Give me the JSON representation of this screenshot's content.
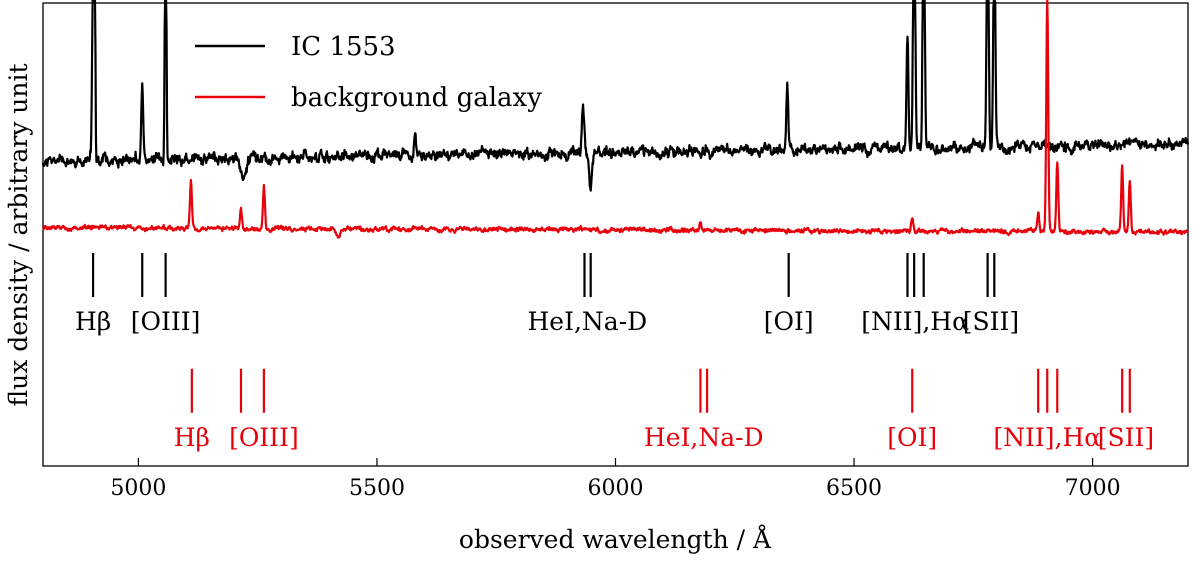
{
  "chart_data": {
    "type": "line",
    "title": "",
    "xlabel": "observed wavelength / Å",
    "ylabel": "flux density / arbitrary unit",
    "xlim": [
      4800,
      7200
    ],
    "ylim": [
      0,
      10
    ],
    "yticks_visible": false,
    "grid": false,
    "legend_position": "top-left",
    "xticks": [
      5000,
      5500,
      6000,
      6500,
      7000
    ],
    "xtick_labels": [
      "5000",
      "5500",
      "6000",
      "6500",
      7000
    ],
    "series": [
      {
        "name": "IC 1553",
        "color": "#000000",
        "baseline_start": 6.6,
        "baseline_end": 6.95,
        "noise": 0.12,
        "features": [
          {
            "x": 4905,
            "amp": 3.8,
            "width": 2.0
          },
          {
            "x": 4908,
            "amp": 7.0,
            "width": 1.3
          },
          {
            "x": 5008,
            "amp": 1.6,
            "width": 2.0
          },
          {
            "x": 5057,
            "amp": 7.0,
            "width": 1.5
          },
          {
            "x": 5220,
            "amp": -0.5,
            "width": 6
          },
          {
            "x": 5580,
            "amp": 0.5,
            "width": 2.0
          },
          {
            "x": 5932,
            "amp": 1.0,
            "width": 2.5
          },
          {
            "x": 5948,
            "amp": -0.9,
            "width": 3.0
          },
          {
            "x": 6360,
            "amp": 1.4,
            "width": 2.0
          },
          {
            "x": 6612,
            "amp": 2.5,
            "width": 2.0
          },
          {
            "x": 6626,
            "amp": 7.0,
            "width": 2.0
          },
          {
            "x": 6646,
            "amp": 6.5,
            "width": 2.0
          },
          {
            "x": 6780,
            "amp": 6.0,
            "width": 2.0
          },
          {
            "x": 6794,
            "amp": 5.0,
            "width": 2.0
          }
        ]
      },
      {
        "name": "background galaxy",
        "color": "#e8000b",
        "baseline_start": 5.15,
        "baseline_end": 5.05,
        "noise": 0.05,
        "features": [
          {
            "x": 5110,
            "amp": 1.0,
            "width": 2.0
          },
          {
            "x": 5215,
            "amp": 0.4,
            "width": 2.0
          },
          {
            "x": 5263,
            "amp": 0.9,
            "width": 2.0
          },
          {
            "x": 5420,
            "amp": -0.2,
            "width": 3.0
          },
          {
            "x": 6178,
            "amp": 0.15,
            "width": 2.0
          },
          {
            "x": 6622,
            "amp": 0.3,
            "width": 2.0
          },
          {
            "x": 6886,
            "amp": 0.4,
            "width": 2.0
          },
          {
            "x": 6905,
            "amp": 5.0,
            "width": 2.0
          },
          {
            "x": 6926,
            "amp": 1.5,
            "width": 2.0
          },
          {
            "x": 7062,
            "amp": 1.5,
            "width": 2.0
          },
          {
            "x": 7078,
            "amp": 1.1,
            "width": 2.0
          }
        ]
      }
    ],
    "line_markers": [
      {
        "name": "IC 1553",
        "color": "#000000",
        "y_top": 4.6,
        "y_bottom": 3.65,
        "groups": [
          {
            "label": "Hβ",
            "lines": [
              4905
            ],
            "label_x": 4905
          },
          {
            "label": "[OIII]",
            "lines": [
              5008,
              5057
            ],
            "label_x": 5057
          },
          {
            "label": "HeI,Na-D",
            "lines": [
              5935,
              5948
            ],
            "label_x": 5941
          },
          {
            "label": "[OI]",
            "lines": [
              6363
            ],
            "label_x": 6363
          },
          {
            "label": "[NII],Hα",
            "lines": [
              6612,
              6626,
              6646
            ],
            "label_x": 6628
          },
          {
            "label": "[SII]",
            "lines": [
              6780,
              6794
            ],
            "label_x": 6787
          }
        ]
      },
      {
        "name": "background galaxy",
        "color": "#e8000b",
        "y_top": 2.1,
        "y_bottom": 1.15,
        "groups": [
          {
            "label": "Hβ",
            "lines": [
              5112
            ],
            "label_x": 5112
          },
          {
            "label": "[OIII]",
            "lines": [
              5215,
              5263
            ],
            "label_x": 5263
          },
          {
            "label": "HeI,Na-D",
            "lines": [
              6178,
              6192
            ],
            "label_x": 6185
          },
          {
            "label": "[OI]",
            "lines": [
              6622
            ],
            "label_x": 6622
          },
          {
            "label": "[NII],Hα",
            "lines": [
              6886,
              6905,
              6926
            ],
            "label_x": 6905
          },
          {
            "label": "[SII]",
            "lines": [
              7062,
              7078
            ],
            "label_x": 7070
          }
        ]
      }
    ]
  }
}
